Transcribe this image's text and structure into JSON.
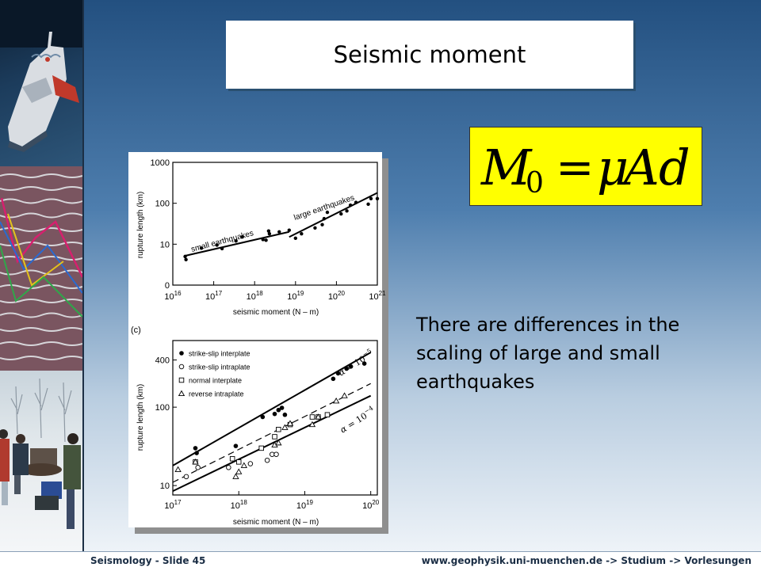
{
  "title": "Seismic moment",
  "formula": {
    "M": "M",
    "sub": "0",
    "eq": "=",
    "mu": "μ",
    "A": "A",
    "d": "d"
  },
  "description": "There are differences in the scaling of large and small earthquakes",
  "footer": {
    "left": "Seismology - Slide 45",
    "right": "www.geophysik.uni-muenchen.de -> Studium -> Vorlesungen"
  },
  "chart_data": [
    {
      "type": "scatter",
      "title": "",
      "xlabel": "seismic moment (N – m)",
      "ylabel": "rupture length (km)",
      "x_scale": "log",
      "x_ticks": [
        1e+16,
        1e+17,
        1e+18,
        1e+19,
        1e+20,
        1e+21
      ],
      "x_tick_labels": [
        {
          "base": "10",
          "exp": "16"
        },
        {
          "base": "10",
          "exp": "17"
        },
        {
          "base": "10",
          "exp": "18"
        },
        {
          "base": "10",
          "exp": "19"
        },
        {
          "base": "10",
          "exp": "20"
        },
        {
          "base": "10",
          "exp": "21"
        }
      ],
      "y_ticks": [
        {
          "label": "1000",
          "value": 1000
        },
        {
          "label": "100",
          "value": 100
        },
        {
          "label": "10",
          "value": 10
        },
        {
          "label": "0",
          "value": 1
        }
      ],
      "annotations": [
        "small earthquakes",
        "large earthquakes"
      ],
      "points": [
        [
          2e+16,
          5.0
        ],
        [
          2.1e+16,
          4.2
        ],
        [
          5e+16,
          8.0
        ],
        [
          1.2e+17,
          9.5
        ],
        [
          1.6e+17,
          7.8
        ],
        [
          3.5e+17,
          12
        ],
        [
          5e+17,
          15
        ],
        [
          1.6e+18,
          13
        ],
        [
          1.9e+18,
          12.5
        ],
        [
          2.3e+18,
          18
        ],
        [
          2.2e+18,
          21
        ],
        [
          4e+18,
          20
        ],
        [
          7e+18,
          22
        ],
        [
          1e+19,
          14
        ],
        [
          1.4e+19,
          18
        ],
        [
          3e+19,
          25
        ],
        [
          4.5e+19,
          30
        ],
        [
          5e+19,
          42
        ],
        [
          6e+19,
          60
        ],
        [
          1.3e+20,
          55
        ],
        [
          1.8e+20,
          65
        ],
        [
          2.2e+20,
          90
        ],
        [
          3e+20,
          105
        ],
        [
          6e+20,
          95
        ],
        [
          7e+20,
          130
        ],
        [
          1e+21,
          130
        ]
      ],
      "fit_lines": [
        {
          "x": [
            2e+16,
            7e+18
          ],
          "y": [
            5.2,
            20
          ]
        },
        {
          "x": [
            7e+18,
            1e+21
          ],
          "y": [
            15,
            180
          ]
        }
      ]
    },
    {
      "type": "scatter",
      "title": "",
      "panel_label": "(c)",
      "xlabel": "seismic moment (N – m)",
      "ylabel": "rupture length (km)",
      "x_scale": "log",
      "y_scale": "log",
      "x_ticks": [
        1e+17,
        1e+18,
        1e+19,
        1e+20
      ],
      "x_tick_labels": [
        {
          "base": "10",
          "exp": "17"
        },
        {
          "base": "10",
          "exp": "18"
        },
        {
          "base": "10",
          "exp": "19"
        },
        {
          "base": "10",
          "exp": "20"
        }
      ],
      "y_ticks": [
        {
          "label": "400",
          "value": 400
        },
        {
          "label": "100",
          "value": 100
        },
        {
          "label": "10",
          "value": 10
        }
      ],
      "legend": [
        "strike-slip interplate",
        "strike-slip intraplate",
        "normal interplate",
        "reverse intraplate"
      ],
      "legend_position": "top-left",
      "line_labels": [
        {
          "alpha": "α",
          "eq": "= 10",
          "exp": "−5"
        },
        {
          "alpha": "α",
          "eq": "= 10",
          "exp": "−4"
        }
      ],
      "series": [
        {
          "name": "strike-slip interplate",
          "marker": "filled-circle",
          "points": [
            [
              2.2e+17,
              30
            ],
            [
              2.3e+17,
              26
            ],
            [
              9e+17,
              32
            ],
            [
              2.3e+18,
              75
            ],
            [
              3.5e+18,
              82
            ],
            [
              4e+18,
              92
            ],
            [
              4.5e+18,
              98
            ],
            [
              5e+18,
              80
            ],
            [
              2.7e+19,
              230
            ],
            [
              3.2e+19,
              270
            ],
            [
              4.3e+19,
              310
            ],
            [
              5e+19,
              330
            ],
            [
              8e+19,
              360
            ]
          ]
        },
        {
          "name": "strike-slip intraplate",
          "marker": "open-circle",
          "points": [
            [
              1.6e+17,
              13
            ],
            [
              2.4e+17,
              17
            ],
            [
              7e+17,
              17
            ],
            [
              1.5e+18,
              19
            ],
            [
              2.7e+18,
              21
            ],
            [
              3.2e+18,
              25
            ],
            [
              3.7e+18,
              25
            ]
          ]
        },
        {
          "name": "normal interplate",
          "marker": "open-square",
          "points": [
            [
              2.2e+17,
              20
            ],
            [
              8e+17,
              22
            ],
            [
              1e+18,
              20
            ],
            [
              2.2e+18,
              30
            ],
            [
              3.5e+18,
              42
            ],
            [
              4e+18,
              52
            ],
            [
              6e+18,
              60
            ],
            [
              1.3e+19,
              75
            ],
            [
              1.6e+19,
              75
            ],
            [
              2.2e+19,
              80
            ]
          ]
        },
        {
          "name": "reverse intraplate",
          "marker": "open-triangle",
          "points": [
            [
              1.2e+17,
              16
            ],
            [
              2.2e+17,
              20
            ],
            [
              9e+17,
              13
            ],
            [
              1e+18,
              15
            ],
            [
              1.2e+18,
              18
            ],
            [
              3.5e+18,
              33
            ],
            [
              4e+18,
              35
            ],
            [
              5e+18,
              55
            ],
            [
              6e+18,
              62
            ],
            [
              1.3e+19,
              60
            ],
            [
              1.6e+19,
              75
            ],
            [
              3e+19,
              120
            ],
            [
              4e+19,
              140
            ]
          ]
        }
      ],
      "fit_lines": [
        {
          "style": "solid",
          "x": [
            1e+17,
            1e+20
          ],
          "y": [
            18,
            500
          ]
        },
        {
          "style": "dashed",
          "x": [
            1e+17,
            1e+20
          ],
          "y": [
            11,
            200
          ]
        },
        {
          "style": "solid",
          "x": [
            1e+17,
            1e+20
          ],
          "y": [
            8.5,
            140
          ]
        }
      ]
    }
  ],
  "colors": {
    "formula_bg": "#ffff00",
    "accent": "#2f5f8f"
  }
}
